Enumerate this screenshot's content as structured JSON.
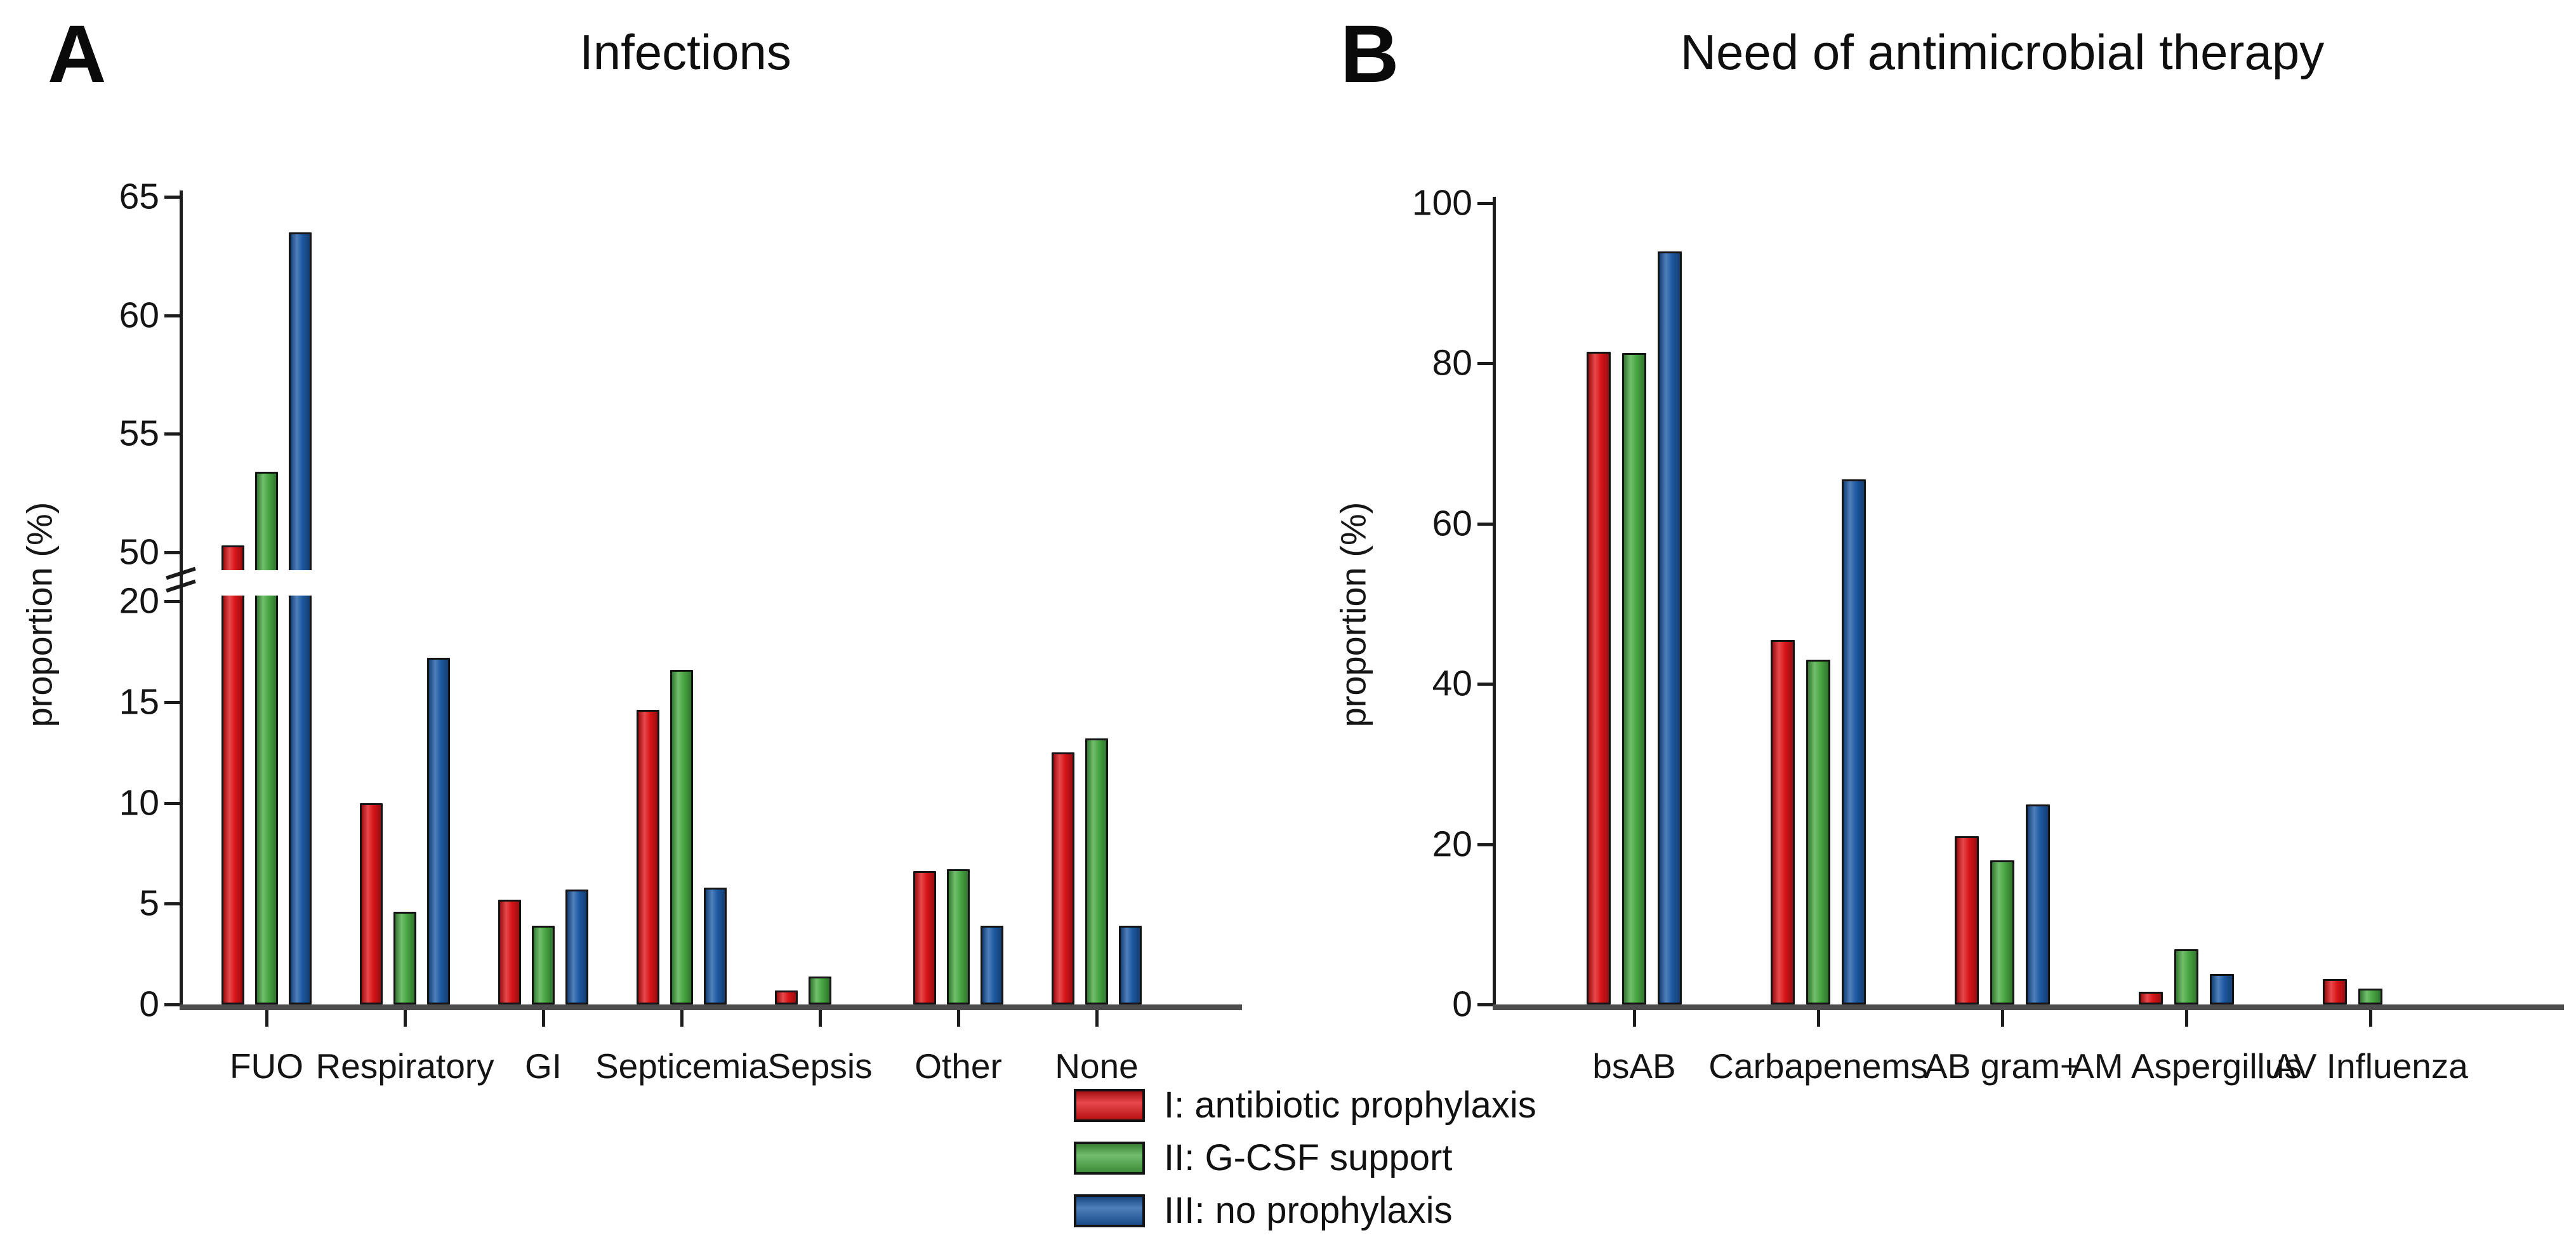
{
  "chart_data": [
    {
      "panel_letter": "A",
      "type": "bar",
      "title": "Infections",
      "xlabel": "",
      "ylabel": "proportion (%)",
      "y_axis": {
        "broken": true,
        "segments": [
          [
            0,
            20
          ],
          [
            50,
            65
          ]
        ],
        "ticks": [
          0,
          5,
          10,
          15,
          20,
          50,
          55,
          60,
          65
        ],
        "grid": false
      },
      "categories": [
        "FUO",
        "Respiratory",
        "GI",
        "Septicemia",
        "Sepsis",
        "Other",
        "None"
      ],
      "series": [
        {
          "name": "I: antibiotic prophylaxis",
          "color": "#e01519",
          "values": [
            50.3,
            10.0,
            5.2,
            14.6,
            0.7,
            6.6,
            12.5
          ]
        },
        {
          "name": "II: G-CSF support",
          "color": "#4aac44",
          "values": [
            53.4,
            4.6,
            3.9,
            16.6,
            1.4,
            6.7,
            13.2
          ]
        },
        {
          "name": "III: no prophylaxis",
          "color": "#1e5ca8",
          "values": [
            63.5,
            17.2,
            5.7,
            5.8,
            0,
            3.9,
            3.9
          ]
        }
      ]
    },
    {
      "panel_letter": "B",
      "type": "bar",
      "title": "Need of antimicrobial therapy",
      "xlabel": "",
      "ylabel": "proportion (%)",
      "y_axis": {
        "broken": false,
        "segments": [
          [
            0,
            100
          ]
        ],
        "ticks": [
          0,
          20,
          40,
          60,
          80,
          100
        ],
        "grid": false
      },
      "categories": [
        "bsAB",
        "Carbapenems",
        "AB gram+",
        "AM Aspergillus",
        "AV Influenza"
      ],
      "series": [
        {
          "name": "I: antibiotic prophylaxis",
          "color": "#e01519",
          "values": [
            81.5,
            45.5,
            21.0,
            1.6,
            3.2
          ]
        },
        {
          "name": "II: G-CSF support",
          "color": "#4aac44",
          "values": [
            81.3,
            43.0,
            18.0,
            6.9,
            2.0
          ]
        },
        {
          "name": "III: no prophylaxis",
          "color": "#1e5ca8",
          "values": [
            94.0,
            65.5,
            25.0,
            3.8,
            0
          ]
        }
      ]
    }
  ],
  "legend": {
    "items": [
      {
        "label": "I: antibiotic prophylaxis",
        "color": "#e01519"
      },
      {
        "label": "II: G-CSF support",
        "color": "#4aac44"
      },
      {
        "label": "III: no prophylaxis",
        "color": "#1e5ca8"
      }
    ]
  }
}
